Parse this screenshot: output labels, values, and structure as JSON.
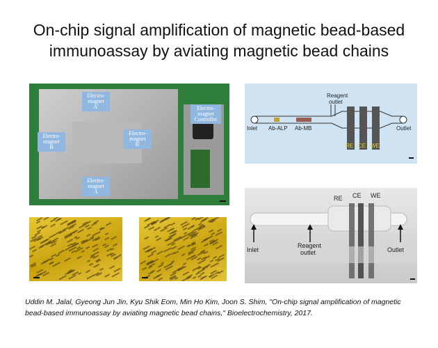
{
  "slide": {
    "title_line1": "On-chip signal amplification of magnetic bead-based",
    "title_line2": "immunoassay by aviating magnetic bead chains",
    "citation": "Uddin M. Jalal, Gyeong Jun Jin, Kyu Shik Eom, Min Ho Kim, Joon S. Shim, \"On-chip signal amplification of magnetic bead-based immunoassay by aviating magnetic bead chains,\" Bioelectrochemistry, 2017."
  },
  "device_photo": {
    "labels": {
      "em_a_top": "Electro-\nmagnet\nA'",
      "em_b_left": "Electro-\nmagnet\nB",
      "em_b_right": "Electro-\nmagnet\nB'",
      "em_a_bottom": "Electro-\nmagnet\nA",
      "controller": "Electro-\nmagnet\nController"
    }
  },
  "schematic": {
    "reagent_outlet": "Reagent\noutlet",
    "inlet": "Inlet",
    "ab_alp": "Ab-ALP",
    "ab_mb": "Ab-MB",
    "re": "RE",
    "ce": "CE",
    "we": "WE",
    "outlet": "Outlet"
  },
  "chip_photo": {
    "re": "RE",
    "ce": "CE",
    "we": "WE",
    "inlet": "Inlet",
    "reagent_outlet": "Reagent\noutlet",
    "outlet": "Outlet"
  },
  "colors": {
    "photo_bg": "#2e7d3a",
    "label_blue": "#8fb7e0",
    "schematic_bg": "#cfe3f3",
    "electrode": "#555555",
    "micro_yellow": "#d9b520"
  }
}
